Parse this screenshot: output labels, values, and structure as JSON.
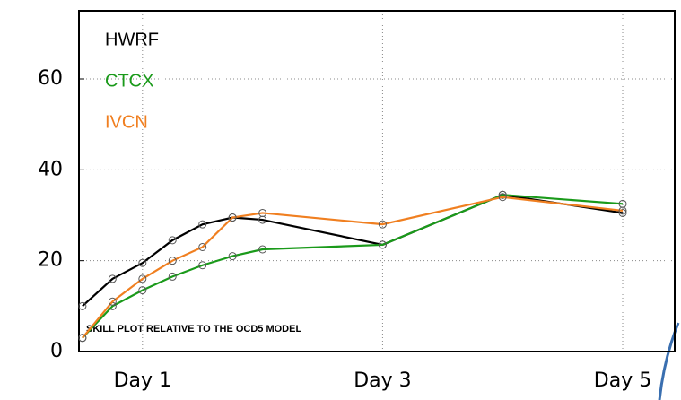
{
  "chart_data": {
    "type": "line",
    "annotation": "SKILL PLOT RELATIVE TO THE OCD5 MODEL",
    "x": [
      12,
      18,
      24,
      30,
      36,
      42,
      48,
      72,
      96,
      120
    ],
    "series": [
      {
        "name": "HWRF",
        "color": "#000000",
        "values": [
          10,
          16,
          19.5,
          24.5,
          28,
          29.5,
          29,
          23.5,
          34.5,
          30.5
        ]
      },
      {
        "name": "CTCX",
        "color": "#1a9a1a",
        "values": [
          3,
          10,
          13.5,
          16.5,
          19,
          21,
          22.5,
          23.5,
          34.5,
          32.5
        ]
      },
      {
        "name": "IVCN",
        "color": "#f07f20",
        "values": [
          3,
          11,
          16,
          20,
          23,
          29.5,
          30.5,
          28,
          34,
          31
        ]
      }
    ],
    "xlim": [
      11.3,
      130.4
    ],
    "xticks": [
      {
        "value": 24,
        "label": "Day 1"
      },
      {
        "value": 72,
        "label": "Day 3"
      },
      {
        "value": 120,
        "label": "Day 5"
      }
    ],
    "ylim": [
      0,
      75
    ],
    "yticks": [
      0,
      20,
      40,
      60
    ],
    "grid": true
  }
}
